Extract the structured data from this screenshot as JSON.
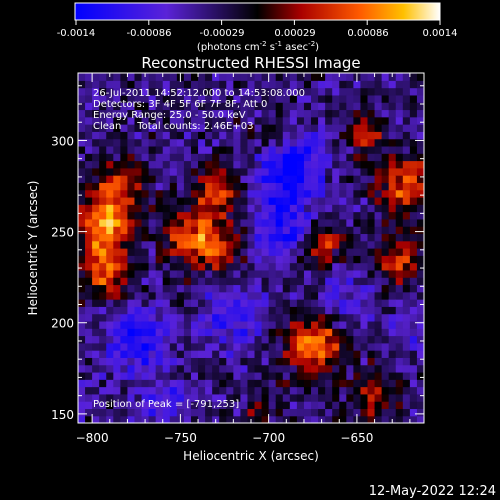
{
  "colorbar": {
    "ticks": [
      "-0.0014",
      "-0.00086",
      "-0.00029",
      "0.00029",
      "0.00086",
      "0.0014"
    ],
    "unit_parts": [
      "(photons cm",
      "-2",
      " s",
      "-1",
      " asec",
      "-2",
      ")"
    ]
  },
  "chart_data": {
    "type": "heatmap",
    "title": "Reconstructed RHESSI Image",
    "xlabel": "Heliocentric X (arcsec)",
    "ylabel": "Heliocentric Y (arcsec)",
    "xlim": [
      -808,
      -612
    ],
    "ylim": [
      145,
      337
    ],
    "xticks": [
      -800,
      -750,
      -700,
      -650
    ],
    "yticks": [
      150,
      200,
      250,
      300
    ],
    "color_range": [
      -0.0014,
      0.0014
    ],
    "annotations": [
      "26-Jul-2011 14:52:12.000 to 14:53:08.000",
      "Detectors: 3F 4F 5F 6F 7F 8F, Att 0",
      "Energy Range: 25.0 - 50.0 keV",
      "Clean     Total counts: 2.46E+03"
    ],
    "peak_label": "Position of Peak = [-791,253]",
    "peak_x": -791,
    "peak_y": 253,
    "sources": [
      {
        "x": -792,
        "y": 253,
        "amp": 0.0014,
        "r": 11
      },
      {
        "x": -792,
        "y": 228,
        "amp": 0.00115,
        "r": 9
      },
      {
        "x": -785,
        "y": 276,
        "amp": 0.0008,
        "r": 10
      },
      {
        "x": -745,
        "y": 247,
        "amp": 0.00105,
        "r": 11
      },
      {
        "x": -728,
        "y": 272,
        "amp": 0.00095,
        "r": 10
      },
      {
        "x": -728,
        "y": 240,
        "amp": 0.0008,
        "r": 9
      },
      {
        "x": -675,
        "y": 188,
        "amp": 0.0012,
        "r": 12
      },
      {
        "x": -672,
        "y": 242,
        "amp": 0.00095,
        "r": 10
      },
      {
        "x": -622,
        "y": 275,
        "amp": 0.00105,
        "r": 12
      },
      {
        "x": -625,
        "y": 235,
        "amp": 0.00085,
        "r": 10
      },
      {
        "x": -640,
        "y": 160,
        "amp": 0.00075,
        "r": 9
      },
      {
        "x": -700,
        "y": 300,
        "amp": 0.0006,
        "r": 9
      },
      {
        "x": -645,
        "y": 305,
        "amp": 0.00075,
        "r": 8
      },
      {
        "x": -705,
        "y": 150,
        "amp": 0.00045,
        "r": 8
      },
      {
        "x": -690,
        "y": 285,
        "amp": -0.0011,
        "r": 14
      },
      {
        "x": -690,
        "y": 250,
        "amp": -0.0009,
        "r": 12
      },
      {
        "x": -775,
        "y": 190,
        "amp": -0.0008,
        "r": 12
      },
      {
        "x": -720,
        "y": 205,
        "amp": -0.0006,
        "r": 12
      },
      {
        "x": -660,
        "y": 215,
        "amp": -0.0005,
        "r": 10
      },
      {
        "x": -760,
        "y": 155,
        "amp": -0.0005,
        "r": 10
      },
      {
        "x": -620,
        "y": 195,
        "amp": -0.0004,
        "r": 9
      }
    ],
    "background": -0.0004
  },
  "footer": {
    "date": "12-May-2022 12:24"
  }
}
